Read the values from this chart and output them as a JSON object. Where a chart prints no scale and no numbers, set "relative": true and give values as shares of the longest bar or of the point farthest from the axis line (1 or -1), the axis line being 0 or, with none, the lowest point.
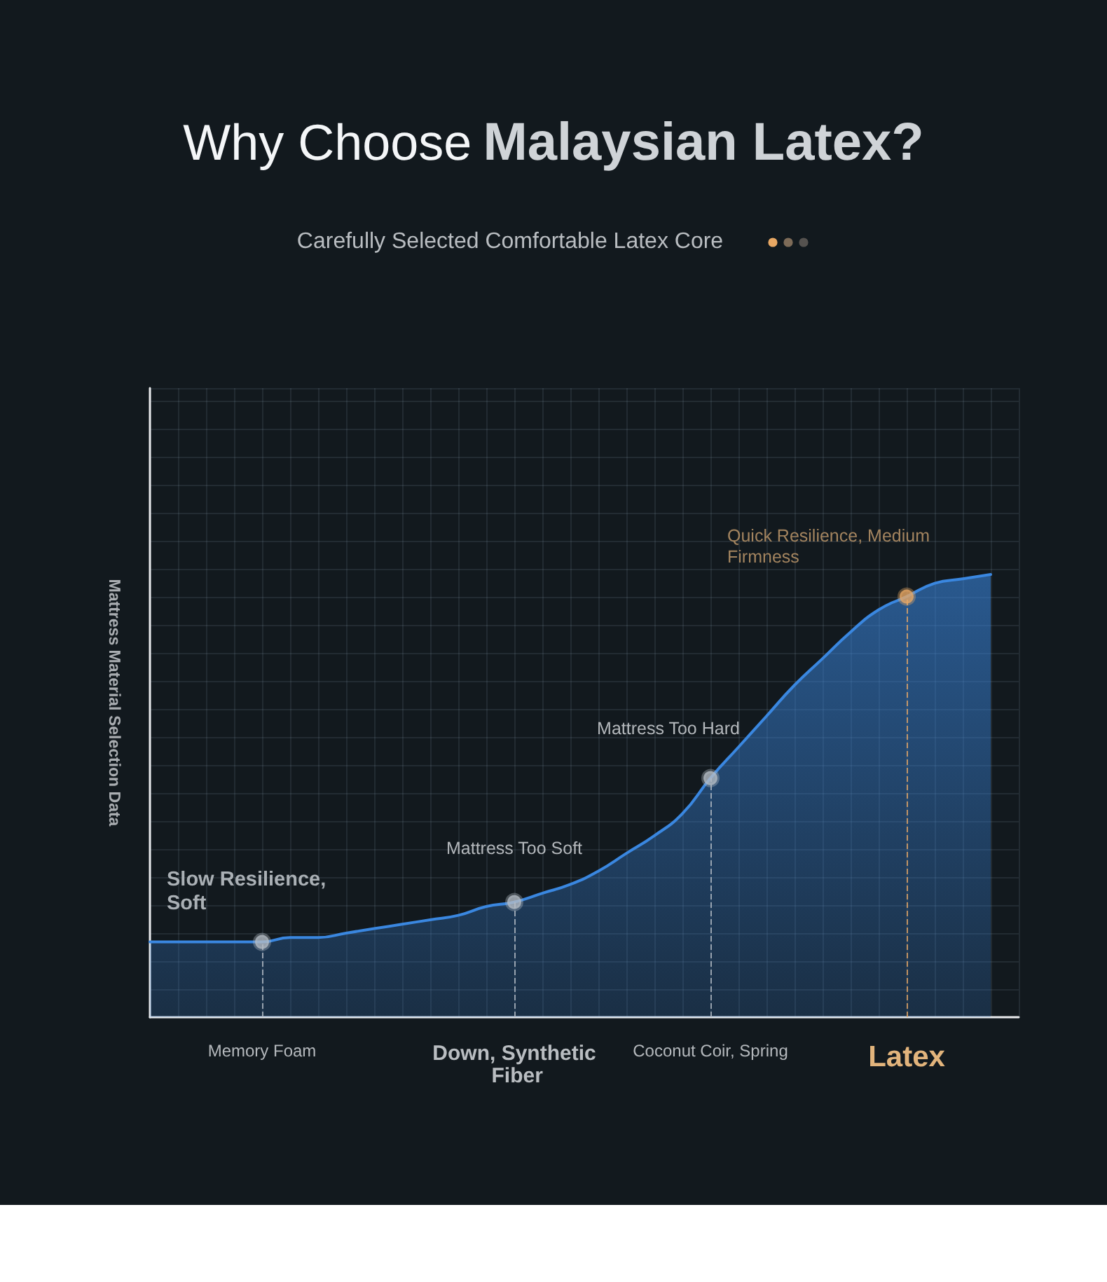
{
  "chart_data": {
    "type": "area",
    "title": "Why Choose Malaysian Latex?",
    "subtitle": "Carefully Selected Comfortable Latex Core",
    "ylabel": "Mattress Material Selection Data",
    "relative": true,
    "grid": true,
    "categories": [
      null,
      null,
      null,
      null,
      "Memory Foam",
      null,
      null,
      null,
      null,
      null,
      null,
      null,
      null,
      "Down, Synthetic Fiber",
      null,
      null,
      null,
      null,
      null,
      null,
      "Coconut Coir, Spring",
      null,
      null,
      null,
      null,
      null,
      null,
      "Latex",
      null,
      null,
      null,
      null
    ],
    "series": [
      {
        "color": "#3a87e0",
        "marker": "none",
        "values": [
          0.17,
          0.17,
          0.17,
          0.17,
          0.17,
          0.18,
          0.18,
          0.19,
          0.2,
          0.21,
          0.22,
          0.23,
          0.25,
          0.26,
          0.28,
          0.3,
          0.33,
          0.37,
          0.41,
          0.46,
          0.54,
          0.61,
          0.68,
          0.75,
          0.81,
          0.87,
          0.92,
          0.95,
          0.98,
          0.99,
          1,
          null
        ]
      },
      {
        "type": "lollipop",
        "marker": "circle",
        "line_style": "dashed",
        "x": [
          "Memory Foam",
          "Down, Synthetic Fiber",
          "Coconut Coir, Spring",
          "Latex"
        ],
        "values": [
          0.17,
          0.26,
          0.54,
          0.95
        ],
        "colors": [
          "#b4bcc4",
          "#b4bcc4",
          "#b4bcc4",
          "#e8a864"
        ]
      }
    ],
    "annotations": [
      {
        "text": "Slow Resilience, Soft",
        "x": "Memory Foam",
        "y": 0.17
      },
      {
        "text": "Mattress Too Soft",
        "x": "Down, Synthetic Fiber",
        "y": 0.26
      },
      {
        "text": "Mattress Too Hard",
        "x": "Coconut Coir, Spring",
        "y": 0.54
      },
      {
        "text": "Quick Resilience, Medium Firmness",
        "x": "Latex",
        "y": 0.95
      }
    ]
  }
}
